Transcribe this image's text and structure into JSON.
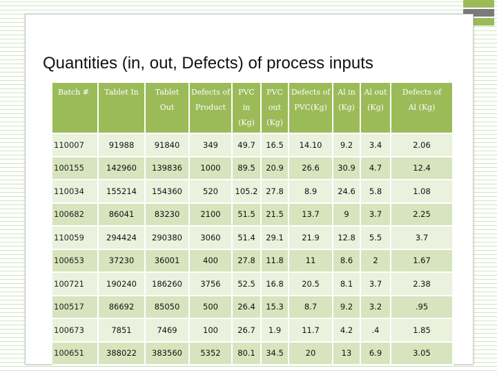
{
  "slide": {
    "title": "Quantities (in, out, Defects) of process inputs",
    "accent_green": "#9bbb59",
    "accent_gray": "#7a7a7a"
  },
  "table": {
    "headers": [
      [
        "Batch #"
      ],
      [
        "Tablet In"
      ],
      [
        "Tablet",
        "Out"
      ],
      [
        "Defects of",
        "Product"
      ],
      [
        "PVC",
        "in",
        "(Kg)"
      ],
      [
        "PVC",
        "out",
        "(Kg)"
      ],
      [
        "Defects of",
        "PVC(Kg)"
      ],
      [
        "Al in",
        "(Kg)"
      ],
      [
        "Al out",
        "(Kg)"
      ],
      [
        "Defects of",
        "Al (Kg)"
      ]
    ],
    "rows": [
      [
        "110007",
        "91988",
        "91840",
        "349",
        "49.7",
        "16.5",
        "14.10",
        "9.2",
        "3.4",
        "2.06"
      ],
      [
        "100155",
        "142960",
        "139836",
        "1000",
        "89.5",
        "20.9",
        "26.6",
        "30.9",
        "4.7",
        "12.4"
      ],
      [
        "110034",
        "155214",
        "154360",
        "520",
        "105.2",
        "27.8",
        "8.9",
        "24.6",
        "5.8",
        "1.08"
      ],
      [
        "100682",
        "86041",
        "83230",
        "2100",
        "51.5",
        "21.5",
        "13.7",
        "9",
        "3.7",
        "2.25"
      ],
      [
        "110059",
        "294424",
        "290380",
        "3060",
        "51.4",
        "29.1",
        "21.9",
        "12.8",
        "5.5",
        "3.7"
      ],
      [
        "100653",
        "37230",
        "36001",
        "400",
        "27.8",
        "11.8",
        "11",
        "8.6",
        "2",
        "1.67"
      ],
      [
        "100721",
        "190240",
        "186260",
        "3756",
        "52.5",
        "16.8",
        "20.5",
        "8.1",
        "3.7",
        "2.38"
      ],
      [
        "100517",
        "86692",
        "85050",
        "500",
        "26.4",
        "15.3",
        "8.7",
        "9.2",
        "3.2",
        ".95"
      ],
      [
        "100673",
        "7851",
        "7469",
        "100",
        "26.7",
        "1.9",
        "11.7",
        "4.2",
        ".4",
        "1.85"
      ],
      [
        "100651",
        "388022",
        "383560",
        "5352",
        "80.1",
        "34.5",
        "20",
        "13",
        "6.9",
        "3.05"
      ]
    ]
  }
}
